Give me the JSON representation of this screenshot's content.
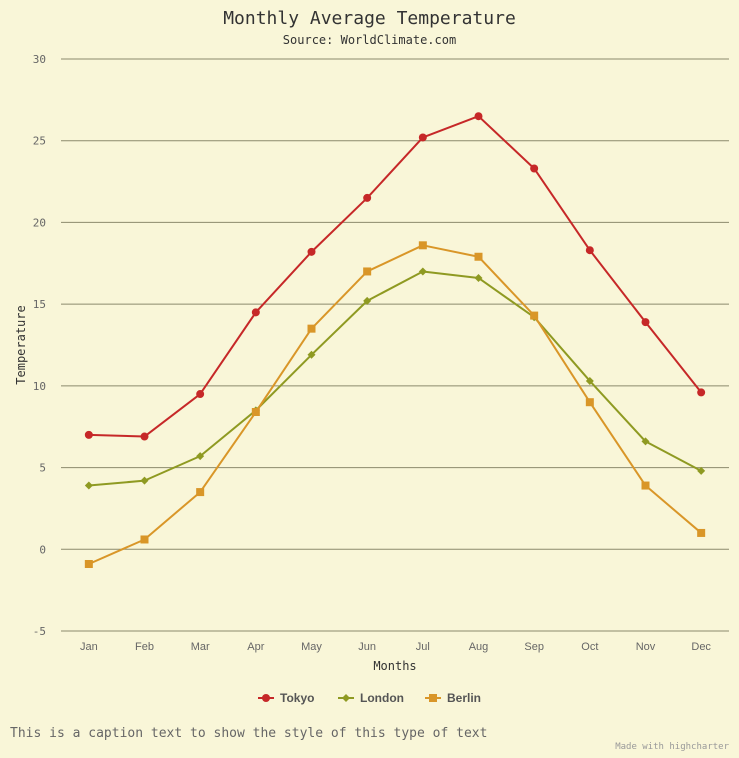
{
  "chart_data": {
    "type": "line",
    "title": "Monthly Average Temperature",
    "subtitle": "Source: WorldClimate.com",
    "xlabel": "Months",
    "ylabel": "Temperature",
    "categories": [
      "Jan",
      "Feb",
      "Mar",
      "Apr",
      "May",
      "Jun",
      "Jul",
      "Aug",
      "Sep",
      "Oct",
      "Nov",
      "Dec"
    ],
    "ylim": [
      -5,
      30
    ],
    "yticks": [
      -5,
      0,
      5,
      10,
      15,
      20,
      25,
      30
    ],
    "grid": true,
    "legend_position": "bottom",
    "series": [
      {
        "name": "Tokyo",
        "color": "#c62828",
        "marker": "circle",
        "values": [
          7.0,
          6.9,
          9.5,
          14.5,
          18.2,
          21.5,
          25.2,
          26.5,
          23.3,
          18.3,
          13.9,
          9.6
        ]
      },
      {
        "name": "London",
        "color": "#8f9a22",
        "marker": "diamond",
        "values": [
          3.9,
          4.2,
          5.7,
          8.5,
          11.9,
          15.2,
          17.0,
          16.6,
          14.2,
          10.3,
          6.6,
          4.8
        ]
      },
      {
        "name": "Berlin",
        "color": "#d99628",
        "marker": "square",
        "values": [
          -0.9,
          0.6,
          3.5,
          8.4,
          13.5,
          17.0,
          18.6,
          17.9,
          14.3,
          9.0,
          3.9,
          1.0
        ]
      }
    ]
  },
  "caption": "This is a caption text to show the style of this type of text",
  "credits": "Made with highcharter"
}
